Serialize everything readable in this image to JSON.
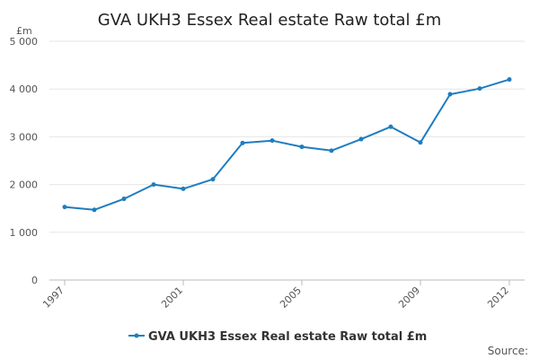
{
  "chart_data": {
    "type": "line",
    "title": "GVA UKH3 Essex Real estate Raw total £m",
    "unit_label": "£m",
    "x": [
      1997,
      1998,
      1999,
      2000,
      2001,
      2002,
      2003,
      2004,
      2005,
      2006,
      2007,
      2008,
      2009,
      2010,
      2011,
      2012
    ],
    "x_tick_labels": [
      "1997",
      "2001",
      "2005",
      "2009",
      "2012"
    ],
    "y_tick_labels": [
      "0",
      "1 000",
      "2 000",
      "3 000",
      "4 000",
      "5 000"
    ],
    "ylim": [
      0,
      5000
    ],
    "grid": true,
    "legend_position": "bottom",
    "series": [
      {
        "name": "GVA UKH3 Essex Real estate Raw total £m",
        "color": "#1f7dbf",
        "values": [
          1530,
          1470,
          1700,
          2000,
          1910,
          2110,
          2870,
          2920,
          2790,
          2710,
          2950,
          3210,
          2880,
          3890,
          4010,
          4200
        ]
      }
    ],
    "source_label": "Source:"
  }
}
